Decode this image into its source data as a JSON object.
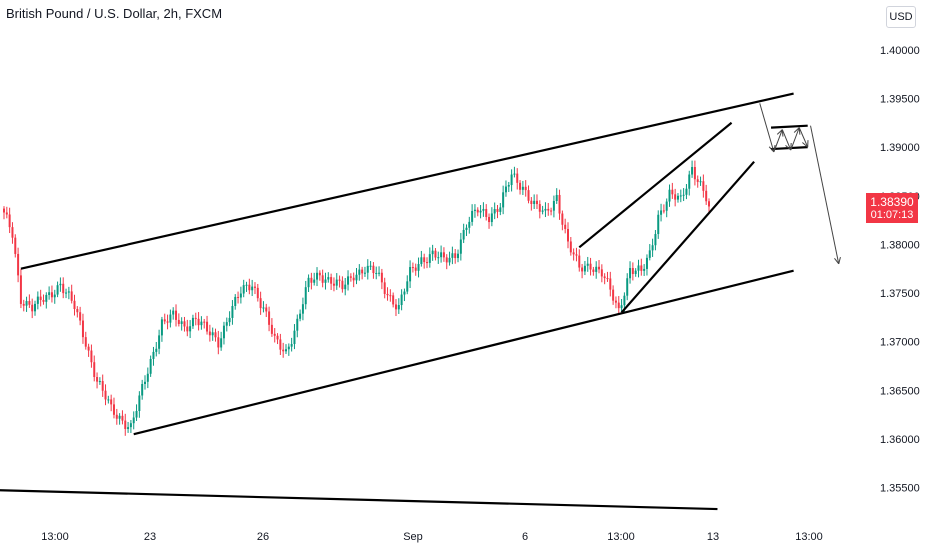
{
  "header": {
    "title": "British Pound / U.S. Dollar, 2h, FXCM",
    "currency": "USD"
  },
  "last_price": {
    "value": "1.38390",
    "countdown": "01:07:13",
    "color": "#f23645"
  },
  "colors": {
    "up": "#089981",
    "down": "#f23645",
    "line": "#000000"
  },
  "chart_data": {
    "type": "candlestick",
    "title": "British Pound / U.S. Dollar, 2h, FXCM",
    "ylim": [
      1.3525,
      1.4045
    ],
    "y_ticks": [
      "1.40000",
      "1.39500",
      "1.39000",
      "1.38500",
      "1.38000",
      "1.37500",
      "1.37000",
      "1.36500",
      "1.36000",
      "1.35500"
    ],
    "x_ticks": [
      "13:00",
      "23",
      "26",
      "Sep",
      "6",
      "13:00",
      "13",
      "13:00"
    ],
    "last_price": 1.3839,
    "path_points": [
      {
        "i": 0,
        "v": 1.383
      },
      {
        "i": 3,
        "v": 1.381
      },
      {
        "i": 6,
        "v": 1.3745
      },
      {
        "i": 10,
        "v": 1.3735
      },
      {
        "i": 15,
        "v": 1.3745
      },
      {
        "i": 20,
        "v": 1.376
      },
      {
        "i": 25,
        "v": 1.3735
      },
      {
        "i": 29,
        "v": 1.37
      },
      {
        "i": 33,
        "v": 1.366
      },
      {
        "i": 38,
        "v": 1.363
      },
      {
        "i": 42,
        "v": 1.362
      },
      {
        "i": 45,
        "v": 1.3612
      },
      {
        "i": 48,
        "v": 1.364
      },
      {
        "i": 52,
        "v": 1.368
      },
      {
        "i": 56,
        "v": 1.372
      },
      {
        "i": 60,
        "v": 1.3725
      },
      {
        "i": 64,
        "v": 1.3715
      },
      {
        "i": 68,
        "v": 1.3725
      },
      {
        "i": 72,
        "v": 1.371
      },
      {
        "i": 76,
        "v": 1.37
      },
      {
        "i": 80,
        "v": 1.373
      },
      {
        "i": 84,
        "v": 1.375
      },
      {
        "i": 88,
        "v": 1.376
      },
      {
        "i": 92,
        "v": 1.3735
      },
      {
        "i": 96,
        "v": 1.37
      },
      {
        "i": 100,
        "v": 1.369
      },
      {
        "i": 104,
        "v": 1.372
      },
      {
        "i": 108,
        "v": 1.376
      },
      {
        "i": 112,
        "v": 1.377
      },
      {
        "i": 116,
        "v": 1.3762
      },
      {
        "i": 120,
        "v": 1.3755
      },
      {
        "i": 124,
        "v": 1.377
      },
      {
        "i": 128,
        "v": 1.3775
      },
      {
        "i": 132,
        "v": 1.377
      },
      {
        "i": 136,
        "v": 1.375
      },
      {
        "i": 140,
        "v": 1.3735
      },
      {
        "i": 144,
        "v": 1.377
      },
      {
        "i": 148,
        "v": 1.3785
      },
      {
        "i": 152,
        "v": 1.379
      },
      {
        "i": 156,
        "v": 1.3783
      },
      {
        "i": 160,
        "v": 1.379
      },
      {
        "i": 164,
        "v": 1.382
      },
      {
        "i": 168,
        "v": 1.3835
      },
      {
        "i": 172,
        "v": 1.383
      },
      {
        "i": 176,
        "v": 1.384
      },
      {
        "i": 180,
        "v": 1.387
      },
      {
        "i": 184,
        "v": 1.386
      },
      {
        "i": 188,
        "v": 1.384
      },
      {
        "i": 192,
        "v": 1.383
      },
      {
        "i": 196,
        "v": 1.385
      },
      {
        "i": 200,
        "v": 1.38
      },
      {
        "i": 204,
        "v": 1.3775
      },
      {
        "i": 208,
        "v": 1.378
      },
      {
        "i": 212,
        "v": 1.377
      },
      {
        "i": 216,
        "v": 1.3745
      },
      {
        "i": 218,
        "v": 1.3732
      },
      {
        "i": 222,
        "v": 1.3775
      },
      {
        "i": 226,
        "v": 1.377
      },
      {
        "i": 229,
        "v": 1.379
      },
      {
        "i": 232,
        "v": 1.383
      },
      {
        "i": 236,
        "v": 1.385
      },
      {
        "i": 240,
        "v": 1.3845
      },
      {
        "i": 244,
        "v": 1.388
      },
      {
        "i": 247,
        "v": 1.386
      },
      {
        "i": 250,
        "v": 1.3839
      }
    ],
    "trendlines": [
      {
        "from": [
          6,
          1.3775
        ],
        "to": [
          280,
          1.3955
        ]
      },
      {
        "from": [
          46,
          1.3605
        ],
        "to": [
          280,
          1.3773
        ]
      },
      {
        "from": [
          204,
          1.3797
        ],
        "to": [
          258,
          1.3925
        ]
      },
      {
        "from": [
          219,
          1.373
        ],
        "to": [
          266,
          1.3885
        ]
      },
      {
        "from": [
          -10,
          1.3548
        ],
        "to": [
          253,
          1.3528
        ]
      },
      {
        "from": [
          272,
          1.392
        ],
        "to": [
          285,
          1.3922
        ]
      },
      {
        "from": [
          272,
          1.3898
        ],
        "to": [
          285,
          1.39
        ]
      }
    ],
    "projection": [
      {
        "from": [
          268,
          1.3945
        ],
        "to": [
          273,
          1.3895
        ]
      },
      {
        "from": [
          273,
          1.3895
        ],
        "to": [
          276,
          1.3918
        ]
      },
      {
        "from": [
          276,
          1.3918
        ],
        "to": [
          279,
          1.3897
        ]
      },
      {
        "from": [
          279,
          1.3897
        ],
        "to": [
          282,
          1.392
        ]
      },
      {
        "from": [
          282,
          1.392
        ],
        "to": [
          285,
          1.39
        ]
      },
      {
        "from": [
          286,
          1.3922
        ],
        "to": [
          296,
          1.378
        ]
      }
    ]
  }
}
